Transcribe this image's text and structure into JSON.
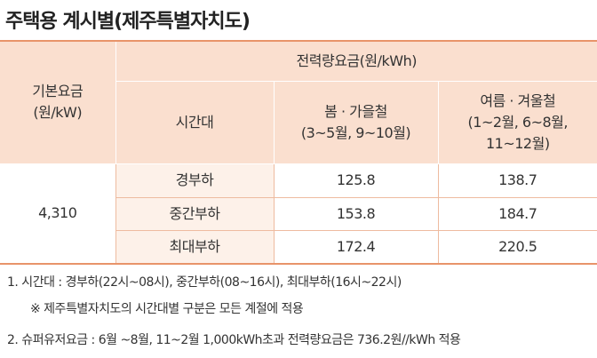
{
  "title": "주택용 계시별(제주특별자치도)",
  "table": {
    "header": {
      "base_fee": [
        "기본요금",
        "(원/kW)"
      ],
      "energy_fee": "전력량요금(원/kWh)",
      "time_slot": "시간대",
      "spring_fall": [
        "봄 · 가을철",
        "(3~5월, 9~10월)"
      ],
      "summer_winter": [
        "여름 · 겨울철",
        "(1~2월, 6~8월,",
        "11~12월)"
      ]
    },
    "base_fee_value": "4,310",
    "rows": [
      [
        "경부하",
        "125.8",
        "138.7"
      ],
      [
        "중간부하",
        "153.8",
        "184.7"
      ],
      [
        "최대부하",
        "172.4",
        "220.5"
      ]
    ]
  },
  "notes": [
    "1. 시간대 : 경부하(22시~08시), 중간부하(08~16시), 최대부하(16시~22시)",
    "※ 제주특별자치도의 시간대별 구분은 모든 계절에 적용",
    "2. 슈퍼유저요금 : 6월 ~8월, 11~2월 1,000kWh초과 전력량요금은 736.2원//kWh 적용"
  ]
}
